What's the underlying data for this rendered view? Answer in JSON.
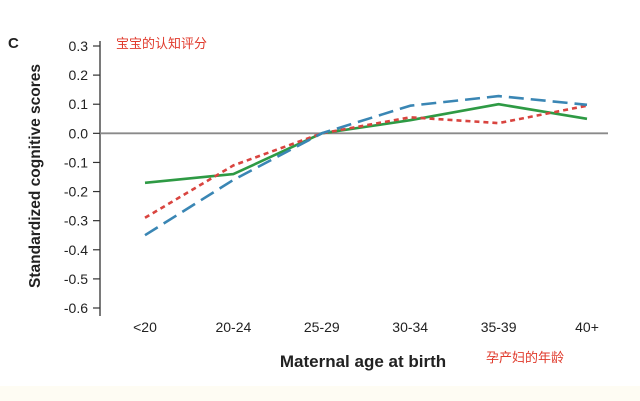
{
  "chart_data": {
    "type": "line",
    "panel_label": "C",
    "title_annotation": "宝宝的认知评分",
    "xlabel": "Maternal age at birth",
    "xlabel_annotation": "孕产妇的年龄",
    "ylabel": "Standardized cognitive scores",
    "categories": [
      "<20",
      "20-24",
      "25-29",
      "30-34",
      "35-39",
      "40+"
    ],
    "yticks": [
      "0.3",
      "0.2",
      "0.1",
      "0.0",
      "-0.1",
      "-0.2",
      "-0.3",
      "-0.4",
      "-0.5",
      "-0.6"
    ],
    "ylim": [
      -0.6,
      0.3
    ],
    "zero_line": 0.0,
    "grid": false,
    "series": [
      {
        "style": "solid",
        "color": "#2e9a44",
        "values": [
          -0.17,
          -0.14,
          0.0,
          0.045,
          0.1,
          0.05
        ]
      },
      {
        "style": "dotted",
        "color": "#d9443f",
        "values": [
          -0.29,
          -0.11,
          0.0,
          0.055,
          0.035,
          0.095
        ]
      },
      {
        "style": "dashed",
        "color": "#3a86b4",
        "values": [
          -0.35,
          -0.16,
          0.0,
          0.095,
          0.128,
          0.098
        ]
      }
    ],
    "colors": {
      "axis": "#333333",
      "zero_line": "#8a8a8a",
      "annotation": "#e03a2c",
      "text": "#222222"
    }
  }
}
